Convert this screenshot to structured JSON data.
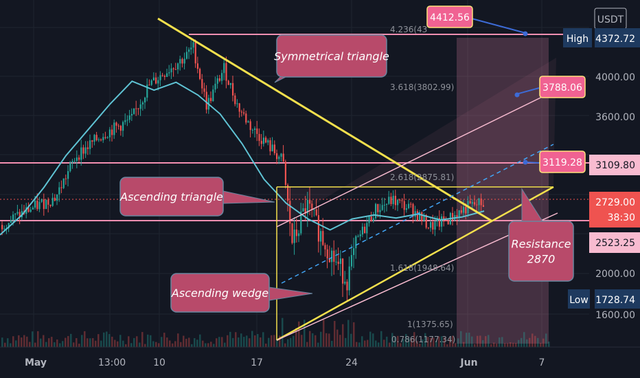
{
  "chart_data": {
    "type": "candlestick",
    "title": "",
    "currency": "USDT",
    "y_range": [
      1500,
      4500
    ],
    "price_axis_ticks": [
      "4000.00",
      "3600.00",
      "2000.00",
      "1600.00"
    ],
    "time_axis_labels": [
      "May",
      "13:00",
      "10",
      "17",
      "24",
      "Jun",
      "7"
    ],
    "price_labels": [
      {
        "label": "High",
        "value": "4372.72",
        "kind": "high"
      },
      {
        "label": "",
        "value": "3109.80",
        "kind": "level"
      },
      {
        "label": "",
        "value": "2729.00",
        "kind": "last"
      },
      {
        "label": "",
        "value": "38:30",
        "kind": "countdown"
      },
      {
        "label": "",
        "value": "2523.25",
        "kind": "level"
      },
      {
        "label": "Low",
        "value": "1728.74",
        "kind": "low"
      }
    ],
    "fib_levels": [
      "4.236(43",
      "3.618(3802.99)",
      "2.618(2875.81)",
      "1.618(1948.64)",
      "1(1375.65)",
      "0.786(1177.34)"
    ],
    "target_tags": [
      "4412.56",
      "3788.06",
      "3119.28"
    ],
    "annotations": [
      "Symmetrical triangle",
      "Ascending triangle",
      "Ascending wedge",
      "Resistance\n2870"
    ],
    "horizontal_levels": [
      4372.72,
      3109.8,
      2523.25
    ],
    "moving_average": [
      2400,
      2600,
      2880,
      3200,
      3460,
      3720,
      3950,
      3860,
      3940,
      3810,
      3620,
      3320,
      2960,
      2720,
      2560,
      2450,
      2560,
      2600,
      2570,
      2610,
      2550,
      2580,
      2640
    ]
  },
  "colors": {
    "background": "#131722",
    "grid": "#1f2430",
    "candle_up": "#26a69a",
    "candle_down": "#ef5350",
    "ma_line": "#5fc3d4",
    "trend_yellow": "#f4e04d",
    "level_pink": "#f48fb1",
    "callout_fill": "#b84a6a",
    "tag_fill": "#f06292",
    "blue_tag": "#1e3a5f"
  }
}
